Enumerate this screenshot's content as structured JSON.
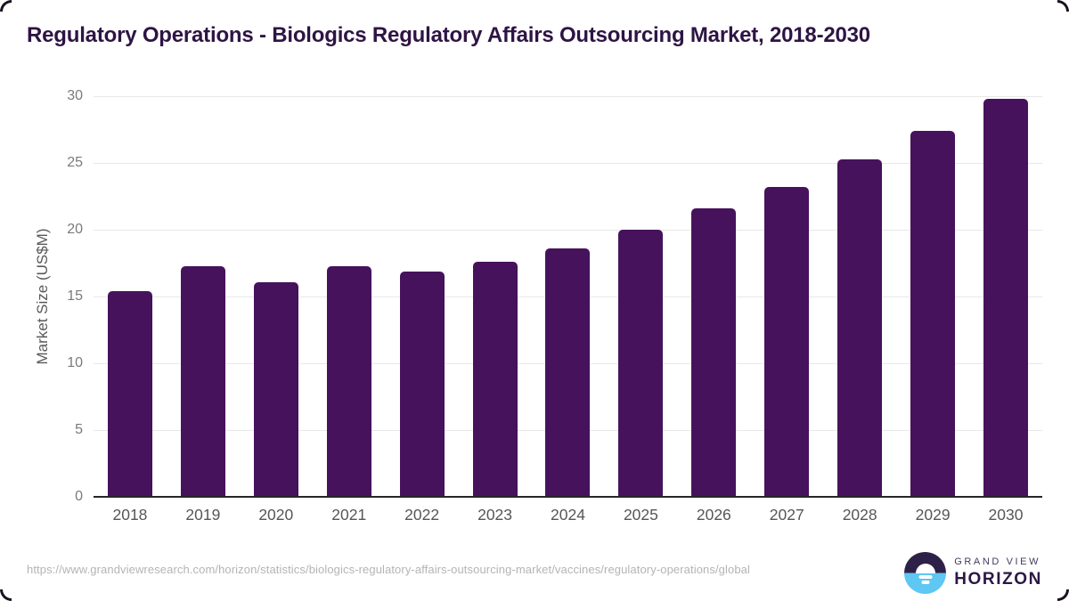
{
  "header": {
    "title": "Regulatory Operations - Biologics Regulatory Affairs Outsourcing Market, 2018-2030"
  },
  "chart_data": {
    "type": "bar",
    "title": "Regulatory Operations - Biologics Regulatory Affairs Outsourcing Market, 2018-2030",
    "categories": [
      "2018",
      "2019",
      "2020",
      "2021",
      "2022",
      "2023",
      "2024",
      "2025",
      "2026",
      "2027",
      "2028",
      "2029",
      "2030"
    ],
    "values": [
      15.4,
      17.3,
      16.1,
      17.3,
      16.9,
      17.6,
      18.6,
      20.0,
      21.6,
      23.2,
      25.3,
      27.4,
      29.8
    ],
    "xlabel": "",
    "ylabel": "Market Size (US$M)",
    "ylim": [
      0,
      30
    ],
    "yticks": [
      "0",
      "5",
      "10",
      "15",
      "20",
      "25",
      "30"
    ],
    "grid": "horizontal-only",
    "legend": "none",
    "bar_color": "#46125c"
  },
  "footer": {
    "source_url": "https://www.grandviewresearch.com/horizon/statistics/biologics-regulatory-affairs-outsourcing-market/vaccines/regulatory-operations/global",
    "logo": {
      "line1": "GRAND VIEW",
      "line2": "HORIZON",
      "icon": "horizon-sun-icon",
      "icon_top_color": "#2e2148",
      "icon_bottom_color": "#5ec7f2"
    }
  },
  "colors": {
    "background": "#ffffff",
    "title_text": "#2e1444",
    "bar": "#46125c",
    "gridline": "#e8e8e8",
    "axis_line": "#262626",
    "tick_text": "#7a7a7a",
    "xlabel_text": "#565656",
    "url_text": "#b4b4b4"
  }
}
